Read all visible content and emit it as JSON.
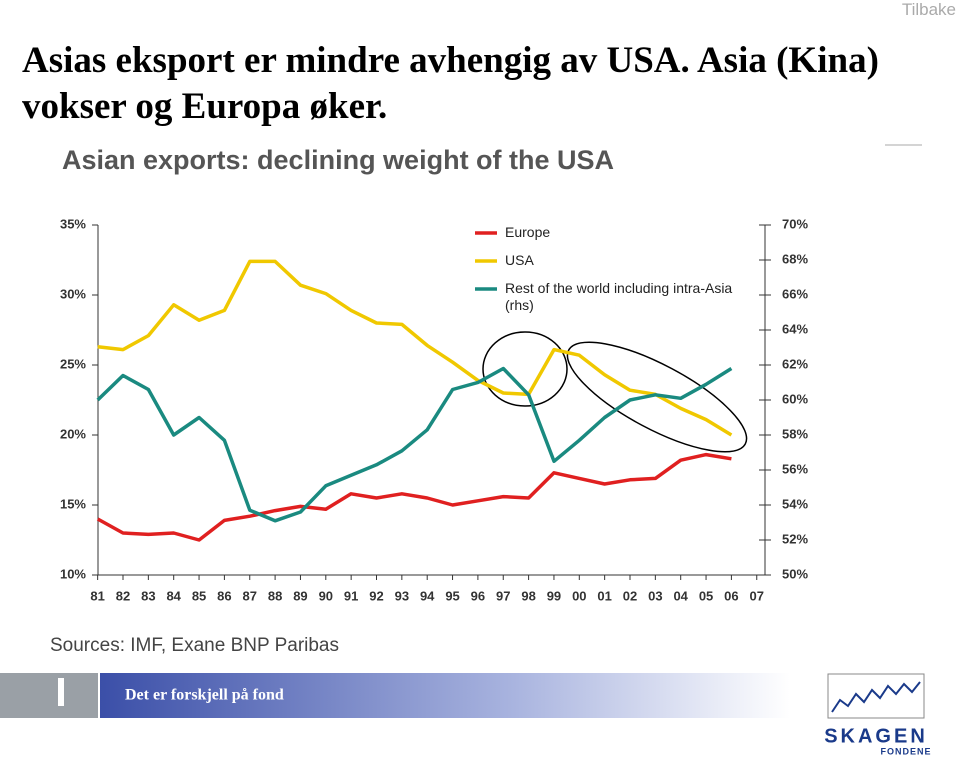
{
  "slide": {
    "back_link": "Tilbake",
    "title": "Asias eksport er  mindre avhengig av USA.   Asia (Kina) vokser og Europa øker.",
    "footer_text": "Det er forskjell på fond",
    "logo_name": "SKAGEN",
    "logo_sub": "FONDENE"
  },
  "chart_data": {
    "type": "line",
    "title": "Asian exports: declining weight of the USA",
    "source": "Sources: IMF, Exane BNP Paribas",
    "categories": [
      "81",
      "82",
      "83",
      "84",
      "85",
      "86",
      "87",
      "88",
      "89",
      "90",
      "91",
      "92",
      "93",
      "94",
      "95",
      "96",
      "97",
      "98",
      "99",
      "00",
      "01",
      "02",
      "03",
      "04",
      "05",
      "06",
      "07"
    ],
    "series": [
      {
        "name": "Europe",
        "color": "#e02020",
        "values": [
          14.0,
          13.0,
          12.9,
          13.0,
          12.5,
          13.9,
          14.2,
          14.6,
          14.9,
          14.7,
          15.8,
          15.5,
          15.8,
          15.5,
          15.0,
          15.3,
          15.6,
          15.5,
          17.3,
          16.9,
          16.5,
          16.8,
          16.9,
          18.2,
          18.6,
          18.3,
          null
        ]
      },
      {
        "name": "USA",
        "color": "#f0c800",
        "values": [
          26.3,
          26.1,
          27.1,
          29.3,
          28.2,
          28.9,
          32.4,
          32.4,
          30.7,
          30.1,
          28.9,
          28.0,
          27.9,
          26.4,
          25.2,
          23.9,
          23.0,
          22.9,
          26.1,
          25.7,
          24.3,
          23.2,
          22.9,
          21.9,
          21.1,
          20.0,
          null
        ]
      },
      {
        "name": "Rest of the world including intra-Asia (rhs)",
        "color": "#1a8a80",
        "axis": "y2",
        "values": [
          60.0,
          61.4,
          60.6,
          58.0,
          59.0,
          57.7,
          53.7,
          53.1,
          53.6,
          55.1,
          55.7,
          56.3,
          57.1,
          58.3,
          60.6,
          61.0,
          61.8,
          60.3,
          56.5,
          57.7,
          59.0,
          60.0,
          60.3,
          60.1,
          60.9,
          61.8,
          null
        ]
      }
    ],
    "ylim": [
      10,
      35
    ],
    "yticks": [
      {
        "value": 10,
        "label": "10%"
      },
      {
        "value": 15,
        "label": "15%"
      },
      {
        "value": 20,
        "label": "20%"
      },
      {
        "value": 25,
        "label": "25%"
      },
      {
        "value": 30,
        "label": "30%"
      },
      {
        "value": 35,
        "label": "35%"
      }
    ],
    "y2lim": [
      50,
      70
    ],
    "y2ticks": [
      {
        "value": 50,
        "label": "50%"
      },
      {
        "value": 52,
        "label": "52%"
      },
      {
        "value": 54,
        "label": "54%"
      },
      {
        "value": 56,
        "label": "56%"
      },
      {
        "value": 58,
        "label": "58%"
      },
      {
        "value": 60,
        "label": "60%"
      },
      {
        "value": 62,
        "label": "62%"
      },
      {
        "value": 64,
        "label": "64%"
      },
      {
        "value": 66,
        "label": "66%"
      },
      {
        "value": 68,
        "label": "68%"
      },
      {
        "value": 70,
        "label": "70%"
      }
    ],
    "grid": false
  }
}
